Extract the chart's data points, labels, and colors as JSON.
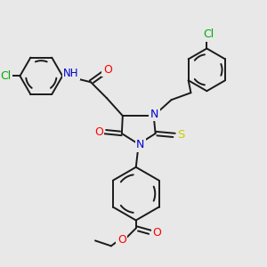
{
  "bg_color": "#e8e8e8",
  "atom_colors": {
    "C": "#000000",
    "N": "#0000cd",
    "O": "#ff0000",
    "S": "#cccc00",
    "Cl": "#00aa00",
    "H": "#607070"
  },
  "bond_color": "#1a1a1a",
  "bond_width": 1.4,
  "figsize": [
    3.0,
    3.0
  ],
  "dpi": 100
}
